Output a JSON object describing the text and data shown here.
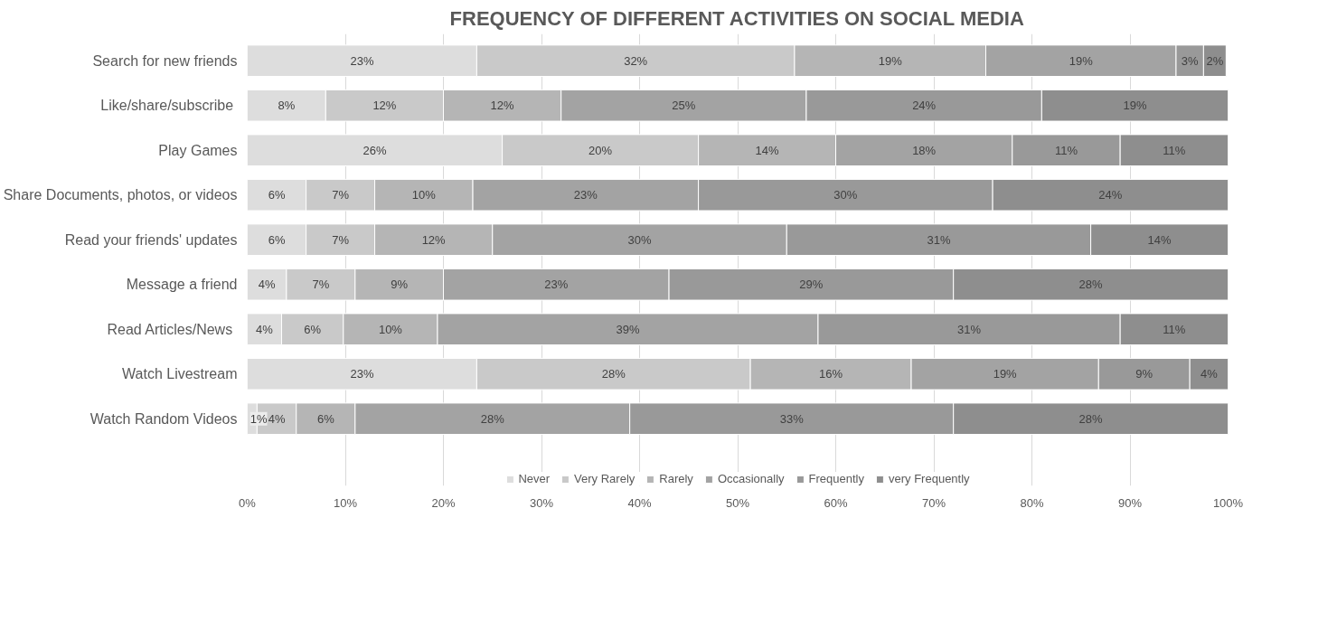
{
  "chart_data": {
    "type": "bar",
    "orientation": "horizontal",
    "stacked": true,
    "title": "FREQUENCY OF DIFFERENT ACTIVITIES ON SOCIAL MEDIA",
    "categories": [
      "Search for new friends",
      "Like/share/subscribe ",
      "Play Games",
      "Share Documents, photos, or videos",
      "Read your friends' updates",
      "Message a friend",
      "Read Articles/News ",
      "Watch Livestream",
      "Watch Random Videos"
    ],
    "series": [
      {
        "name": "Never",
        "color": "#dddddd",
        "values": [
          23.4,
          8,
          26,
          6,
          6,
          4,
          3.5,
          23.4,
          1
        ],
        "value_labels": [
          "23%",
          "8%",
          "26%",
          "6%",
          "6%",
          "4%",
          "4%",
          "23%",
          "1%"
        ]
      },
      {
        "name": "Very Rarely",
        "color": "#c9c9c9",
        "values": [
          32.4,
          12,
          20,
          7,
          7,
          7,
          6.3,
          27.9,
          4
        ],
        "value_labels": [
          "32%",
          "12%",
          "20%",
          "7%",
          "7%",
          "7%",
          "6%",
          "28%",
          "4%"
        ]
      },
      {
        "name": "Rarely",
        "color": "#b5b5b5",
        "values": [
          19.5,
          12,
          14,
          10,
          12,
          9,
          9.6,
          16.4,
          6
        ],
        "value_labels": [
          "19%",
          "12%",
          "14%",
          "10%",
          "12%",
          "9%",
          "10%",
          "16%",
          "6%"
        ]
      },
      {
        "name": "Occasionally",
        "color": "#a3a3a3",
        "values": [
          19.4,
          25,
          18,
          23,
          30,
          23,
          38.8,
          19.1,
          28
        ],
        "value_labels": [
          "19%",
          "25%",
          "18%",
          "23%",
          "30%",
          "23%",
          "39%",
          "19%",
          "28%"
        ]
      },
      {
        "name": "Frequently",
        "color": "#999999",
        "values": [
          2.8,
          24,
          11,
          30,
          31,
          29,
          30.8,
          9.3,
          33
        ],
        "value_labels": [
          "3%",
          "24%",
          "11%",
          "30%",
          "31%",
          "29%",
          "31%",
          "9%",
          "33%"
        ]
      },
      {
        "name": "very Frequently",
        "color": "#8e8e8e",
        "values": [
          2.3,
          19,
          11,
          24,
          14,
          28,
          11.0,
          3.9,
          28
        ],
        "value_labels": [
          "2%",
          "19%",
          "11%",
          "24%",
          "14%",
          "28%",
          "11%",
          "4%",
          "28%"
        ]
      }
    ],
    "xlim": [
      0,
      100
    ],
    "xticks": [
      {
        "value": 0,
        "label": "0%"
      },
      {
        "value": 10,
        "label": "10%"
      },
      {
        "value": 20,
        "label": "20%"
      },
      {
        "value": 30,
        "label": "30%"
      },
      {
        "value": 40,
        "label": "40%"
      },
      {
        "value": 50,
        "label": "50%"
      },
      {
        "value": 60,
        "label": "60%"
      },
      {
        "value": 70,
        "label": "70%"
      },
      {
        "value": 80,
        "label": "80%"
      },
      {
        "value": 90,
        "label": "90%"
      },
      {
        "value": 100,
        "label": "100%"
      }
    ],
    "grid": "x",
    "legend": "bottom"
  }
}
